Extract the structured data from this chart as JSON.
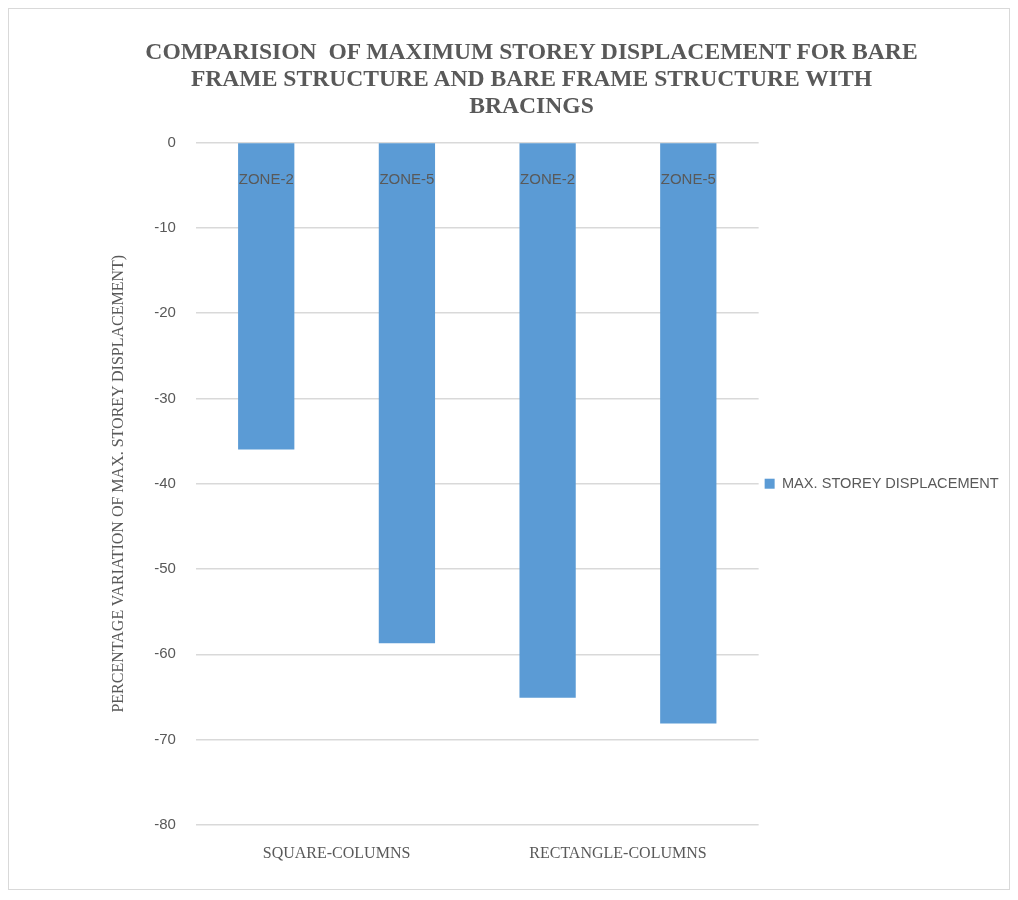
{
  "chart_data": {
    "type": "bar",
    "title": "COMPARISION  OF MAXIMUM STOREY DISPLACEMENT FOR BARE FRAME STRUCTURE AND BARE FRAME STRUCTURE WITH BRACINGS",
    "ylabel": "PERCENTAGE VARIATION OF MAX. STOREY DISPLACEMENT)",
    "categories": [
      "ZONE-2",
      "ZONE-5",
      "ZONE-2",
      "ZONE-5"
    ],
    "series": [
      {
        "name": "MAX. STOREY DISPLACEMENT",
        "color": "#5b9bd5",
        "values": [
          -36,
          -58.7,
          -65.1,
          -68.1
        ]
      }
    ],
    "annotations": [
      "SQUARE-COLUMNS",
      "RECTANGLE-COLUMNS"
    ],
    "ylim": [
      -80,
      0
    ],
    "yticks": [
      0,
      -10,
      -20,
      -30,
      -40,
      -50,
      -60,
      -70,
      -80
    ],
    "grid": "y",
    "legend": "right"
  }
}
